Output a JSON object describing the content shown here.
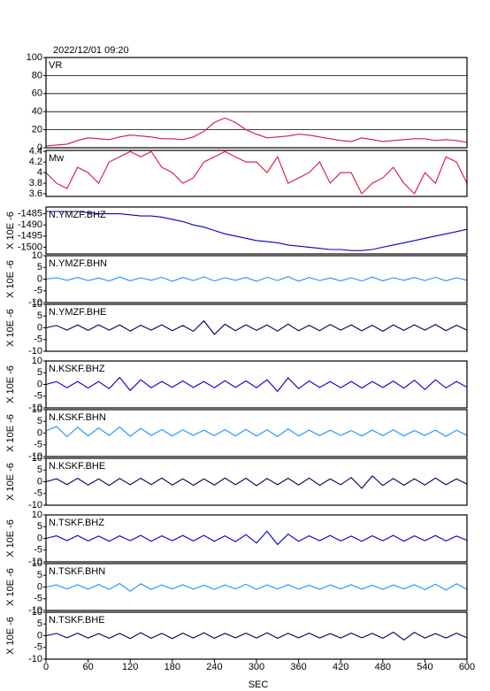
{
  "chart_data": [
    {
      "type": "line",
      "title": "2022/12/01 09:20",
      "label": "VR",
      "color": "#dc143c",
      "grid": true,
      "x": [
        0,
        15,
        30,
        45,
        60,
        75,
        90,
        105,
        120,
        135,
        150,
        165,
        180,
        195,
        210,
        225,
        240,
        255,
        270,
        285,
        300,
        315,
        330,
        345,
        360,
        375,
        390,
        405,
        420,
        435,
        450,
        465,
        480,
        495,
        510,
        525,
        540,
        555,
        570,
        585,
        600
      ],
      "values": [
        2,
        3,
        4,
        8,
        11,
        10,
        9,
        12,
        14,
        13,
        12,
        10,
        10,
        9,
        12,
        18,
        28,
        33,
        28,
        20,
        15,
        11,
        12,
        13,
        15,
        14,
        12,
        10,
        8,
        7,
        11,
        9,
        7,
        8,
        9,
        10,
        10,
        8,
        9,
        8,
        6
      ],
      "xlim": [
        0,
        600
      ],
      "ylim": [
        0,
        100
      ],
      "yticks": [
        0,
        20,
        40,
        60,
        80,
        100
      ]
    },
    {
      "type": "line",
      "label": "Mw",
      "color": "#dc143c",
      "grid": false,
      "x": [
        0,
        15,
        30,
        45,
        60,
        75,
        90,
        105,
        120,
        135,
        150,
        165,
        180,
        195,
        210,
        225,
        240,
        255,
        270,
        285,
        300,
        315,
        330,
        345,
        360,
        375,
        390,
        405,
        420,
        435,
        450,
        465,
        480,
        495,
        510,
        525,
        540,
        555,
        570,
        585,
        600
      ],
      "values": [
        4.0,
        3.8,
        3.7,
        4.1,
        4.0,
        3.8,
        4.2,
        4.3,
        4.4,
        4.3,
        4.4,
        4.1,
        4.0,
        3.8,
        3.9,
        4.2,
        4.3,
        4.4,
        4.3,
        4.2,
        4.2,
        4.0,
        4.3,
        3.8,
        3.9,
        4.0,
        4.2,
        3.8,
        4.0,
        4.0,
        3.6,
        3.8,
        3.9,
        4.1,
        3.8,
        3.6,
        4.0,
        3.8,
        4.3,
        4.2,
        3.8
      ],
      "xlim": [
        0,
        600
      ],
      "ylim": [
        3.55,
        4.42
      ],
      "yticks": [
        3.6,
        3.8,
        4.0,
        4.2,
        4.4
      ]
    },
    {
      "type": "line",
      "label": "N.YMZF.BHZ",
      "ylabel": "X 10E -6",
      "color": "#0000cc",
      "x": [
        0,
        15,
        30,
        45,
        60,
        75,
        90,
        105,
        120,
        135,
        150,
        165,
        180,
        195,
        210,
        225,
        240,
        255,
        270,
        285,
        300,
        315,
        330,
        345,
        360,
        375,
        390,
        405,
        420,
        435,
        450,
        465,
        480,
        495,
        510,
        525,
        540,
        555,
        570,
        585,
        600
      ],
      "values": [
        -1484,
        -1484,
        -1484,
        -1484,
        -1484.5,
        -1485,
        -1485,
        -1485,
        -1485.5,
        -1486,
        -1486,
        -1486.5,
        -1487.5,
        -1488.5,
        -1490,
        -1491,
        -1492.5,
        -1494,
        -1495,
        -1496,
        -1497,
        -1497.5,
        -1498,
        -1499,
        -1499.5,
        -1500,
        -1500.5,
        -1501,
        -1501,
        -1501.5,
        -1501.5,
        -1501,
        -1500,
        -1499,
        -1498,
        -1497,
        -1496,
        -1495,
        -1494,
        -1493,
        -1492
      ],
      "xlim": [
        0,
        600
      ],
      "ylim": [
        -1503,
        -1482
      ],
      "yticks": [
        -1500,
        -1495,
        -1490,
        -1485
      ]
    },
    {
      "type": "line",
      "label": "N.YMZF.BHN",
      "ylabel": "X 10E -6",
      "color": "#1e90ff",
      "x": [
        0,
        15,
        30,
        45,
        60,
        75,
        90,
        105,
        120,
        135,
        150,
        165,
        180,
        195,
        210,
        225,
        240,
        255,
        270,
        285,
        300,
        315,
        330,
        345,
        360,
        375,
        390,
        405,
        420,
        435,
        450,
        465,
        480,
        495,
        510,
        525,
        540,
        555,
        570,
        585,
        600
      ],
      "values": [
        0,
        0.6,
        -0.5,
        0.7,
        -0.6,
        0.5,
        -0.8,
        0.9,
        -0.7,
        0.6,
        -0.5,
        0.8,
        -0.9,
        0.7,
        -0.6,
        1.0,
        -0.8,
        0.6,
        -0.5,
        0.7,
        -0.9,
        0.8,
        -0.6,
        1.1,
        -0.9,
        0.7,
        -0.6,
        0.5,
        -0.7,
        0.6,
        -0.8,
        0.9,
        -0.7,
        0.6,
        -0.5,
        0.7,
        -0.6,
        0.8,
        -0.7,
        0.6,
        -0.5
      ],
      "xlim": [
        0,
        600
      ],
      "ylim": [
        -10,
        10
      ],
      "yticks": [
        -10,
        -5,
        0,
        5,
        10
      ]
    },
    {
      "type": "line",
      "label": "N.YMZF.BHE",
      "ylabel": "X 10E -6",
      "color": "#000066",
      "x": [
        0,
        15,
        30,
        45,
        60,
        75,
        90,
        105,
        120,
        135,
        150,
        165,
        180,
        195,
        210,
        225,
        240,
        255,
        270,
        285,
        300,
        315,
        330,
        345,
        360,
        375,
        390,
        405,
        420,
        435,
        450,
        465,
        480,
        495,
        510,
        525,
        540,
        555,
        570,
        585,
        600
      ],
      "values": [
        0,
        1,
        -1,
        1.2,
        -1.1,
        1.3,
        -1,
        1.2,
        -1.4,
        1.1,
        -1,
        1.3,
        -1.2,
        1,
        -1.5,
        3,
        -2.8,
        1.5,
        -1.2,
        1.3,
        -1.1,
        1.2,
        -1.4,
        1.6,
        -1.3,
        1.1,
        -1.2,
        1.4,
        -1,
        1.2,
        -1.3,
        1.1,
        -1.5,
        1.2,
        -1.1,
        1.3,
        -1,
        1.4,
        -1.2,
        1.1,
        -1
      ],
      "xlim": [
        0,
        600
      ],
      "ylim": [
        -10,
        10
      ],
      "yticks": [
        -10,
        -5,
        0,
        5,
        10
      ]
    },
    {
      "type": "line",
      "label": "N.KSKF.BHZ",
      "ylabel": "X 10E -6",
      "color": "#0000cc",
      "x": [
        0,
        15,
        30,
        45,
        60,
        75,
        90,
        105,
        120,
        135,
        150,
        165,
        180,
        195,
        210,
        225,
        240,
        255,
        270,
        285,
        300,
        315,
        330,
        345,
        360,
        375,
        390,
        405,
        420,
        435,
        450,
        465,
        480,
        495,
        510,
        525,
        540,
        555,
        570,
        585,
        600
      ],
      "values": [
        0,
        1.2,
        -1.4,
        1.3,
        -1.5,
        1.2,
        -1.8,
        3,
        -2.6,
        2,
        -1.4,
        1.3,
        -1.2,
        1.5,
        -1.3,
        1.2,
        -1.4,
        1.6,
        -1.3,
        1.5,
        -1.4,
        2,
        -3,
        2.8,
        -1.8,
        1.5,
        -1.3,
        1.2,
        -1.4,
        1.3,
        -1.5,
        1.2,
        -1.3,
        1.4,
        -1.6,
        1.8,
        -2.2,
        2,
        -1.5,
        1.3,
        -1.2
      ],
      "xlim": [
        0,
        600
      ],
      "ylim": [
        -10,
        10
      ],
      "yticks": [
        -10,
        -5,
        0,
        5,
        10
      ]
    },
    {
      "type": "line",
      "label": "N.KSKF.BHN",
      "ylabel": "X 10E -6",
      "color": "#1e90ff",
      "x": [
        0,
        15,
        30,
        45,
        60,
        75,
        90,
        105,
        120,
        135,
        150,
        165,
        180,
        195,
        210,
        225,
        240,
        255,
        270,
        285,
        300,
        315,
        330,
        345,
        360,
        375,
        390,
        405,
        420,
        435,
        450,
        465,
        480,
        495,
        510,
        525,
        540,
        555,
        570,
        585,
        600
      ],
      "values": [
        1,
        2.8,
        -1.5,
        2.5,
        -1.2,
        2.2,
        -1,
        2.6,
        -1.4,
        2,
        -1,
        1.5,
        -1.2,
        1.4,
        -1,
        1.3,
        -1.1,
        1.5,
        -1.2,
        1.6,
        -1.3,
        1.4,
        -1.5,
        1.8,
        -1.2,
        1.3,
        -1.1,
        1.2,
        -1,
        1.1,
        -1.2,
        1.3,
        -1.1,
        1.4,
        -1.2,
        1.1,
        -1,
        1.3,
        -1.4,
        1.2,
        -1
      ],
      "xlim": [
        0,
        600
      ],
      "ylim": [
        -10,
        10
      ],
      "yticks": [
        -10,
        -5,
        0,
        5,
        10
      ]
    },
    {
      "type": "line",
      "label": "N.KSKF.BHE",
      "ylabel": "X 10E -6",
      "color": "#000066",
      "x": [
        0,
        15,
        30,
        45,
        60,
        75,
        90,
        105,
        120,
        135,
        150,
        165,
        180,
        195,
        210,
        225,
        240,
        255,
        270,
        285,
        300,
        315,
        330,
        345,
        360,
        375,
        390,
        405,
        420,
        435,
        450,
        465,
        480,
        495,
        510,
        525,
        540,
        555,
        570,
        585,
        600
      ],
      "values": [
        0,
        1.3,
        -1.2,
        1.5,
        -1.4,
        1.2,
        -1.6,
        1.4,
        -1.3,
        1.5,
        -1.2,
        1.6,
        -1.4,
        1.3,
        -1.5,
        1.2,
        -1.4,
        1.6,
        -1.3,
        1.5,
        -1.7,
        1.4,
        -1.3,
        1.5,
        -1.4,
        1.6,
        -1.5,
        1.2,
        -1.3,
        1.8,
        -2.8,
        2.5,
        -1.6,
        1.4,
        -1.5,
        1.3,
        -1.4,
        1.6,
        -1.3,
        1.2,
        -1
      ],
      "xlim": [
        0,
        600
      ],
      "ylim": [
        -10,
        10
      ],
      "yticks": [
        -10,
        -5,
        0,
        5,
        10
      ]
    },
    {
      "type": "line",
      "label": "N.TSKF.BHZ",
      "ylabel": "X 10E -6",
      "color": "#0000cc",
      "x": [
        0,
        15,
        30,
        45,
        60,
        75,
        90,
        105,
        120,
        135,
        150,
        165,
        180,
        195,
        210,
        225,
        240,
        255,
        270,
        285,
        300,
        315,
        330,
        345,
        360,
        375,
        390,
        405,
        420,
        435,
        450,
        465,
        480,
        495,
        510,
        525,
        540,
        555,
        570,
        585,
        600
      ],
      "values": [
        0,
        1.1,
        -1,
        1.2,
        -1.1,
        1,
        -1.2,
        1.1,
        -1,
        1.3,
        -1.2,
        1.1,
        -1,
        1.2,
        -1.1,
        1.3,
        -1.2,
        1.1,
        -1.4,
        1.6,
        -2,
        3,
        -2.6,
        1.8,
        -1.2,
        1.1,
        -1,
        1.2,
        -1.1,
        1,
        -1.2,
        1.1,
        -1,
        1.3,
        -1.2,
        1.1,
        -1,
        1.2,
        -1.1,
        1,
        -0.8
      ],
      "xlim": [
        0,
        600
      ],
      "ylim": [
        -10,
        10
      ],
      "yticks": [
        -10,
        -5,
        0,
        5,
        10
      ]
    },
    {
      "type": "line",
      "label": "N.TSKF.BHN",
      "ylabel": "X 10E -6",
      "color": "#1e90ff",
      "x": [
        0,
        15,
        30,
        45,
        60,
        75,
        90,
        105,
        120,
        135,
        150,
        165,
        180,
        195,
        210,
        225,
        240,
        255,
        270,
        285,
        300,
        315,
        330,
        345,
        360,
        375,
        390,
        405,
        420,
        435,
        450,
        465,
        480,
        495,
        510,
        525,
        540,
        555,
        570,
        585,
        600
      ],
      "values": [
        0,
        0.9,
        -0.8,
        1,
        -0.9,
        1.1,
        -1,
        1.5,
        -1.8,
        1.4,
        -1,
        0.9,
        -0.8,
        1,
        -0.9,
        0.8,
        -1,
        0.9,
        -0.8,
        1.2,
        -1,
        0.9,
        -0.8,
        1,
        -0.9,
        0.8,
        -1,
        0.9,
        -0.8,
        1,
        -0.9,
        0.8,
        -1,
        0.9,
        -0.8,
        1,
        -1.1,
        1.2,
        -1.3,
        1.4,
        -1
      ],
      "xlim": [
        0,
        600
      ],
      "ylim": [
        -10,
        10
      ],
      "yticks": [
        -10,
        -5,
        0,
        5,
        10
      ]
    },
    {
      "type": "line",
      "label": "N.TSKF.BHE",
      "ylabel": "X 10E -6",
      "xlabel": "SEC",
      "color": "#000066",
      "x": [
        0,
        15,
        30,
        45,
        60,
        75,
        90,
        105,
        120,
        135,
        150,
        165,
        180,
        195,
        210,
        225,
        240,
        255,
        270,
        285,
        300,
        315,
        330,
        345,
        360,
        375,
        390,
        405,
        420,
        435,
        450,
        465,
        480,
        495,
        510,
        525,
        540,
        555,
        570,
        585,
        600
      ],
      "values": [
        0,
        1,
        -0.9,
        1.1,
        -1,
        0.9,
        -1.1,
        1,
        -1.2,
        1.3,
        -1.1,
        1,
        -1.2,
        1.1,
        -1,
        1.2,
        -1.1,
        1,
        -0.9,
        1.1,
        -1,
        1.2,
        -1.1,
        1,
        -0.9,
        1.1,
        -1,
        0.9,
        -1,
        1.1,
        -0.9,
        1,
        -1.1,
        1.5,
        -1.8,
        1.4,
        -1,
        0.9,
        -1,
        1.1,
        -0.9
      ],
      "xlim": [
        0,
        600
      ],
      "ylim": [
        -10,
        10
      ],
      "yticks": [
        -10,
        -5,
        0,
        5,
        10
      ],
      "xticks": [
        0,
        60,
        120,
        180,
        240,
        300,
        360,
        420,
        480,
        540,
        600
      ]
    }
  ]
}
